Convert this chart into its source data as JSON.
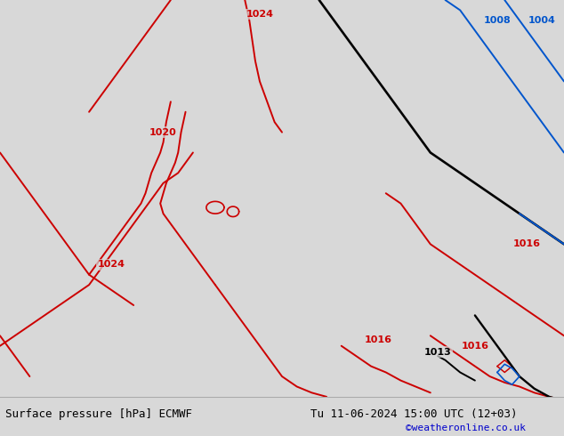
{
  "title_left": "Surface pressure [hPa] ECMWF",
  "title_right": "Tu 11-06-2024 15:00 UTC (12+03)",
  "copyright": "©weatheronline.co.uk",
  "bg_color": "#d8d8d8",
  "land_color": "#c8e8a0",
  "sea_color": "#d8d8d8",
  "border_color": "#888888",
  "coast_color": "#888888",
  "contour_red_color": "#cc0000",
  "contour_black_color": "#000000",
  "contour_blue_color": "#0055cc",
  "label_fontsize": 8,
  "footer_fontsize": 9,
  "copyright_fontsize": 8,
  "copyright_color": "#0000cc",
  "lon_min": -16,
  "lon_max": 22,
  "lat_min": 44,
  "lat_max": 63.5,
  "figwidth": 6.34,
  "figheight": 4.9,
  "dpi": 100
}
